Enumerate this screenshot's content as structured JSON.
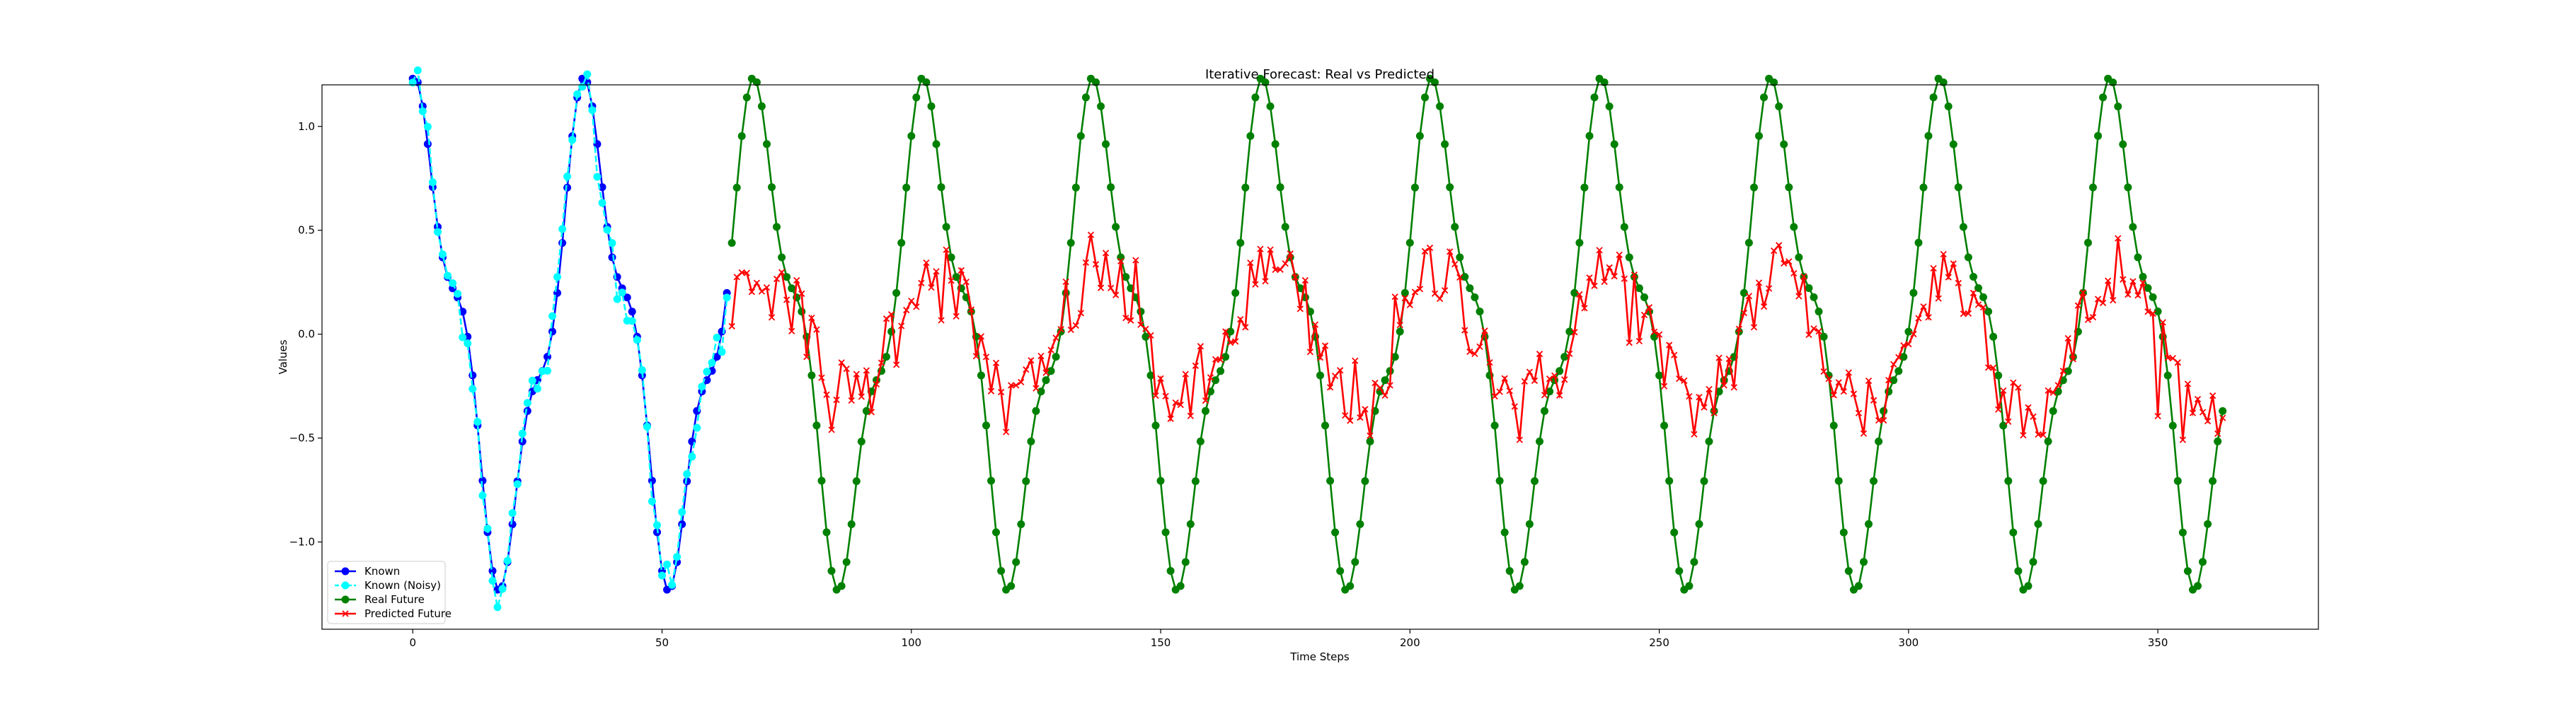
{
  "chart_data": {
    "type": "line",
    "title": "Iterative Forecast: Real vs Predicted",
    "xlabel": "Time Steps",
    "ylabel": "Values",
    "xlim": [
      -18.2,
      382.2
    ],
    "ylim": [
      -1.42,
      1.2
    ],
    "xticks": [
      0,
      50,
      100,
      150,
      200,
      250,
      300,
      350
    ],
    "yticks": [
      -1.0,
      -0.5,
      0.0,
      0.5,
      1.0
    ],
    "ytick_labels": [
      "−1.0",
      "−0.5",
      "0.0",
      "0.5",
      "1.0"
    ],
    "grid": false,
    "legend_position": "lower-left",
    "signal": {
      "description_formula": "sin(2*pi*t/34 + 1.37) + 0.25*cos(2*pi*t/11.33)",
      "period_a": 34,
      "phase_a": 1.37,
      "period_b": 11.333,
      "amp_b": 0.25
    },
    "series": [
      {
        "name": "Known",
        "x_start": 0,
        "x_end": 63,
        "color": "#0000ff",
        "marker": "circle",
        "line": "solid"
      },
      {
        "name": "Known (Noisy)",
        "x_start": 0,
        "x_end": 63,
        "color": "#00ffff",
        "marker": "circle",
        "line": "dashed"
      },
      {
        "name": "Real Future",
        "x_start": 64,
        "x_end": 363,
        "color": "#008000",
        "marker": "circle",
        "line": "solid"
      },
      {
        "name": "Predicted Future",
        "x_start": 64,
        "x_end": 363,
        "color": "#ff0000",
        "marker": "x",
        "line": "solid"
      }
    ]
  }
}
